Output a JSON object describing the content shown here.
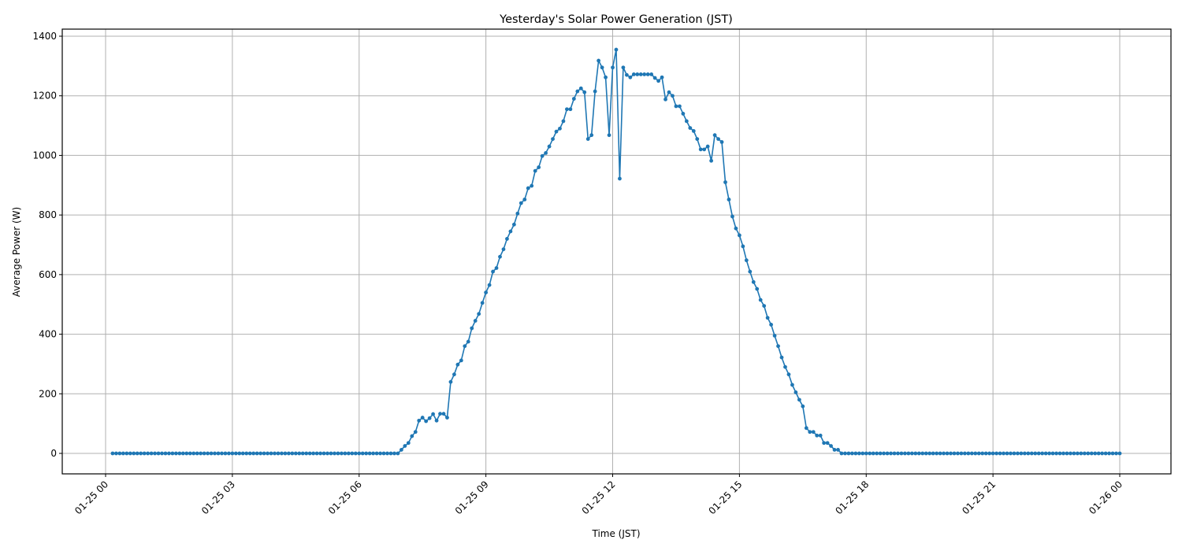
{
  "chart_data": {
    "type": "line",
    "title": "Yesterday's Solar Power Generation (JST)",
    "xlabel": "Time (JST)",
    "ylabel": "Average Power (W)",
    "x_tick_labels": [
      "01-25 00",
      "01-25 03",
      "01-25 06",
      "01-25 09",
      "01-25 12",
      "01-25 15",
      "01-25 18",
      "01-25 21",
      "01-26 00"
    ],
    "y_tick_labels": [
      "0",
      "200",
      "400",
      "600",
      "800",
      "1000",
      "1200",
      "1400"
    ],
    "xlim_hours": [
      -0.68,
      25.56
    ],
    "ylim": [
      -70,
      1425
    ],
    "grid": true,
    "legend": null,
    "marker": "circle",
    "line_color": "#1f77b4",
    "interval_minutes": 5,
    "series": [
      {
        "name": "Average Power (W)",
        "nonzero_points": [
          [
            "07:00",
            12
          ],
          [
            "07:05",
            25
          ],
          [
            "07:10",
            35
          ],
          [
            "07:15",
            58
          ],
          [
            "07:20",
            72
          ],
          [
            "07:25",
            110
          ],
          [
            "07:30",
            120
          ],
          [
            "07:35",
            108
          ],
          [
            "07:40",
            118
          ],
          [
            "07:45",
            132
          ],
          [
            "07:50",
            110
          ],
          [
            "07:55",
            133
          ],
          [
            "08:00",
            133
          ],
          [
            "08:05",
            120
          ],
          [
            "08:10",
            240
          ],
          [
            "08:15",
            265
          ],
          [
            "08:20",
            298
          ],
          [
            "08:25",
            312
          ],
          [
            "08:30",
            360
          ],
          [
            "08:35",
            375
          ],
          [
            "08:40",
            420
          ],
          [
            "08:45",
            445
          ],
          [
            "08:50",
            468
          ],
          [
            "08:55",
            505
          ],
          [
            "09:00",
            540
          ],
          [
            "09:05",
            565
          ],
          [
            "09:10",
            610
          ],
          [
            "09:15",
            622
          ],
          [
            "09:20",
            660
          ],
          [
            "09:25",
            685
          ],
          [
            "09:30",
            720
          ],
          [
            "09:35",
            745
          ],
          [
            "09:40",
            768
          ],
          [
            "09:45",
            805
          ],
          [
            "09:50",
            840
          ],
          [
            "09:55",
            852
          ],
          [
            "10:00",
            890
          ],
          [
            "10:05",
            898
          ],
          [
            "10:10",
            948
          ],
          [
            "10:15",
            960
          ],
          [
            "10:20",
            998
          ],
          [
            "10:25",
            1008
          ],
          [
            "10:30",
            1030
          ],
          [
            "10:35",
            1055
          ],
          [
            "10:40",
            1080
          ],
          [
            "10:45",
            1090
          ],
          [
            "10:50",
            1115
          ],
          [
            "10:55",
            1155
          ],
          [
            "11:00",
            1155
          ],
          [
            "11:05",
            1190
          ],
          [
            "11:10",
            1215
          ],
          [
            "11:15",
            1225
          ],
          [
            "11:20",
            1212
          ],
          [
            "11:25",
            1055
          ],
          [
            "11:30",
            1068
          ],
          [
            "11:35",
            1215
          ],
          [
            "11:40",
            1318
          ],
          [
            "11:45",
            1295
          ],
          [
            "11:50",
            1262
          ],
          [
            "11:55",
            1068
          ],
          [
            "12:00",
            1295
          ],
          [
            "12:05",
            1355
          ],
          [
            "12:10",
            922
          ],
          [
            "12:15",
            1295
          ],
          [
            "12:20",
            1270
          ],
          [
            "12:25",
            1262
          ],
          [
            "12:30",
            1272
          ],
          [
            "12:35",
            1272
          ],
          [
            "12:40",
            1272
          ],
          [
            "12:45",
            1272
          ],
          [
            "12:50",
            1272
          ],
          [
            "12:55",
            1272
          ],
          [
            "13:00",
            1260
          ],
          [
            "13:05",
            1250
          ],
          [
            "13:10",
            1262
          ],
          [
            "13:15",
            1188
          ],
          [
            "13:20",
            1212
          ],
          [
            "13:25",
            1200
          ],
          [
            "13:30",
            1165
          ],
          [
            "13:35",
            1165
          ],
          [
            "13:40",
            1140
          ],
          [
            "13:45",
            1115
          ],
          [
            "13:50",
            1092
          ],
          [
            "13:55",
            1082
          ],
          [
            "14:00",
            1055
          ],
          [
            "14:05",
            1020
          ],
          [
            "14:10",
            1020
          ],
          [
            "14:15",
            1030
          ],
          [
            "14:20",
            982
          ],
          [
            "14:25",
            1068
          ],
          [
            "14:30",
            1055
          ],
          [
            "14:35",
            1045
          ],
          [
            "14:40",
            910
          ],
          [
            "14:45",
            852
          ],
          [
            "14:50",
            795
          ],
          [
            "14:55",
            755
          ],
          [
            "15:00",
            732
          ],
          [
            "15:05",
            695
          ],
          [
            "15:10",
            648
          ],
          [
            "15:15",
            610
          ],
          [
            "15:20",
            575
          ],
          [
            "15:25",
            552
          ],
          [
            "15:30",
            515
          ],
          [
            "15:35",
            495
          ],
          [
            "15:40",
            455
          ],
          [
            "15:45",
            432
          ],
          [
            "15:50",
            395
          ],
          [
            "15:55",
            360
          ],
          [
            "16:00",
            322
          ],
          [
            "16:05",
            290
          ],
          [
            "16:10",
            265
          ],
          [
            "16:15",
            230
          ],
          [
            "16:20",
            205
          ],
          [
            "16:25",
            180
          ],
          [
            "16:30",
            158
          ],
          [
            "16:35",
            85
          ],
          [
            "16:40",
            72
          ],
          [
            "16:45",
            72
          ],
          [
            "16:50",
            60
          ],
          [
            "16:55",
            60
          ],
          [
            "17:00",
            35
          ],
          [
            "17:05",
            35
          ],
          [
            "17:10",
            25
          ],
          [
            "17:15",
            12
          ],
          [
            "17:20",
            12
          ]
        ],
        "zero_range_note": "All other 5-minute points from 01-25 00:10 to 01-26 00:00 are 0 W",
        "first_point": "00:10",
        "last_point": "24:00"
      }
    ]
  }
}
